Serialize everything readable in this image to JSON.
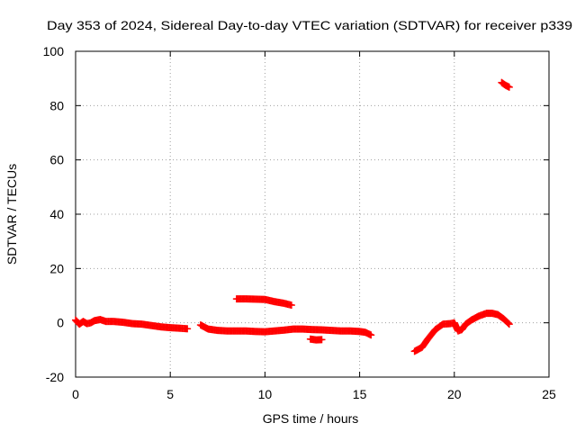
{
  "chart_data": {
    "type": "scatter",
    "title": "Day 353 of 2024, Sidereal Day-to-day VTEC variation (SDTVAR) for receiver p339",
    "xlabel": "GPS time / hours",
    "ylabel": "SDTVAR / TECUs",
    "xlim": [
      0,
      25
    ],
    "ylim": [
      -20,
      100
    ],
    "xticks": [
      "0",
      "5",
      "10",
      "15",
      "20",
      "25"
    ],
    "yticks": [
      "-20",
      "0",
      "20",
      "40",
      "60",
      "80",
      "100"
    ],
    "grid": true,
    "marker": "plus",
    "color": "#ff0000",
    "series": [
      {
        "name": "SDTVAR",
        "segments": [
          [
            [
              0.0,
              1.0
            ],
            [
              0.2,
              -0.5
            ],
            [
              0.4,
              0.5
            ],
            [
              0.6,
              -0.3
            ],
            [
              0.8,
              0.0
            ],
            [
              1.0,
              0.8
            ],
            [
              1.3,
              1.2
            ],
            [
              1.6,
              0.5
            ],
            [
              2.0,
              0.5
            ],
            [
              2.5,
              0.2
            ],
            [
              3.0,
              -0.3
            ],
            [
              3.5,
              -0.5
            ],
            [
              4.0,
              -1.0
            ],
            [
              4.5,
              -1.5
            ],
            [
              5.0,
              -1.8
            ],
            [
              5.5,
              -2.0
            ],
            [
              5.9,
              -2.2
            ]
          ],
          [
            [
              6.6,
              -0.8
            ],
            [
              7.0,
              -2.3
            ],
            [
              7.5,
              -2.8
            ],
            [
              8.0,
              -3.0
            ],
            [
              8.5,
              -3.0
            ],
            [
              9.0,
              -3.0
            ],
            [
              9.5,
              -3.2
            ],
            [
              10.0,
              -3.3
            ],
            [
              10.5,
              -3.0
            ],
            [
              11.0,
              -2.7
            ],
            [
              11.5,
              -2.3
            ],
            [
              12.0,
              -2.3
            ],
            [
              12.5,
              -2.5
            ],
            [
              13.0,
              -2.6
            ],
            [
              13.5,
              -2.8
            ],
            [
              14.0,
              -3.0
            ],
            [
              14.5,
              -3.0
            ],
            [
              15.0,
              -3.2
            ],
            [
              15.3,
              -3.5
            ],
            [
              15.6,
              -4.5
            ]
          ],
          [
            [
              8.5,
              8.8
            ],
            [
              9.0,
              8.8
            ],
            [
              9.5,
              8.7
            ],
            [
              10.0,
              8.6
            ],
            [
              10.5,
              7.8
            ],
            [
              11.0,
              7.2
            ],
            [
              11.4,
              6.5
            ]
          ],
          [
            [
              12.4,
              -6.0
            ],
            [
              12.7,
              -6.3
            ],
            [
              13.0,
              -6.2
            ]
          ],
          [
            [
              17.9,
              -10.5
            ],
            [
              18.3,
              -9.0
            ],
            [
              18.6,
              -6.0
            ],
            [
              19.0,
              -2.5
            ],
            [
              19.4,
              -0.5
            ],
            [
              19.8,
              -0.3
            ],
            [
              20.0,
              0.0
            ],
            [
              20.2,
              -3.0
            ],
            [
              20.4,
              -2.5
            ],
            [
              20.6,
              -0.5
            ],
            [
              20.9,
              1.0
            ],
            [
              21.3,
              2.5
            ],
            [
              21.7,
              3.5
            ],
            [
              22.0,
              3.5
            ],
            [
              22.3,
              3.0
            ],
            [
              22.6,
              1.5
            ],
            [
              22.9,
              -0.5
            ]
          ],
          [
            [
              22.5,
              88.5
            ],
            [
              22.7,
              87.5
            ],
            [
              22.9,
              86.8
            ]
          ]
        ]
      }
    ]
  }
}
